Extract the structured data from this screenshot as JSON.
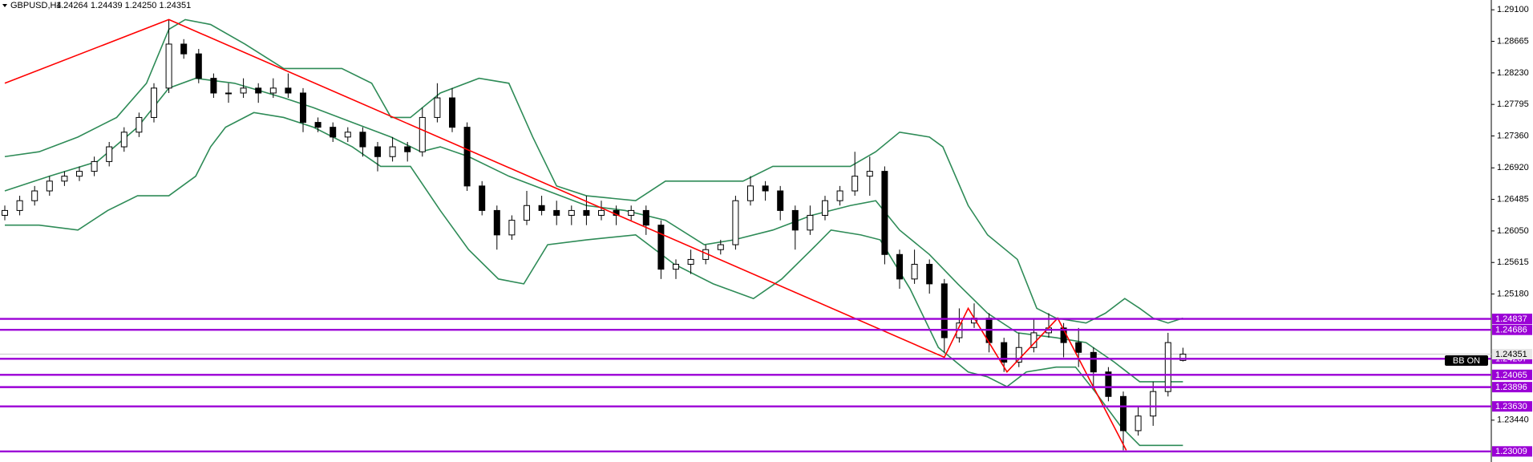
{
  "chart_data": {
    "type": "candlestick",
    "title": "GBPUSD,H4",
    "subtitle": "1.24264 1.24439 1.24250 1.24351",
    "ylim": [
      1.22863,
      1.29235
    ],
    "yticks": [
      {
        "value": 1.291,
        "label": "1.29100"
      },
      1.28665,
      {
        "value": 1.2823,
        "label": "1.28230"
      },
      1.27795,
      {
        "value": 1.2736,
        "label": "1.27360"
      },
      {
        "value": 1.2692,
        "label": "1.26920"
      },
      1.26485,
      {
        "value": 1.2605,
        "label": "1.26050"
      },
      1.25615,
      {
        "value": 1.2518,
        "label": "1.25180"
      },
      {
        "value": 1.2344,
        "label": "1.23440"
      }
    ],
    "ohlc": [
      [
        1.26265,
        1.264,
        1.26197,
        1.26332
      ],
      [
        1.26332,
        1.26535,
        1.26265,
        1.26467
      ],
      [
        1.26467,
        1.2667,
        1.264,
        1.26602
      ],
      [
        1.26602,
        1.26805,
        1.26535,
        1.26737
      ],
      [
        1.26737,
        1.26872,
        1.2667,
        1.26805
      ],
      [
        1.26805,
        1.2694,
        1.26737,
        1.26872
      ],
      [
        1.26872,
        1.27075,
        1.26805,
        1.27007
      ],
      [
        1.27007,
        1.27277,
        1.2694,
        1.2721
      ],
      [
        1.2721,
        1.2748,
        1.27142,
        1.27412
      ],
      [
        1.27412,
        1.27682,
        1.27345,
        1.27615
      ],
      [
        1.27615,
        1.28087,
        1.27547,
        1.2802
      ],
      [
        1.2802,
        1.28965,
        1.27952,
        1.28627
      ],
      [
        1.28627,
        1.28695,
        1.28425,
        1.28492
      ],
      [
        1.28492,
        1.2856,
        1.28087,
        1.28155
      ],
      [
        1.28155,
        1.28222,
        1.27885,
        1.27952
      ],
      [
        1.27952,
        1.28087,
        1.27817,
        1.27952
      ],
      [
        1.27952,
        1.28155,
        1.27885,
        1.2802
      ],
      [
        1.2802,
        1.28087,
        1.27817,
        1.27952
      ],
      [
        1.27952,
        1.28155,
        1.27885,
        1.2802
      ],
      [
        1.2802,
        1.28222,
        1.27885,
        1.27952
      ],
      [
        1.27952,
        1.2802,
        1.27412,
        1.27547
      ],
      [
        1.27547,
        1.27615,
        1.27412,
        1.2748
      ],
      [
        1.2748,
        1.27547,
        1.27277,
        1.27345
      ],
      [
        1.27345,
        1.2748,
        1.27277,
        1.27412
      ],
      [
        1.27412,
        1.2748,
        1.27075,
        1.2721
      ],
      [
        1.2721,
        1.27277,
        1.26872,
        1.27075
      ],
      [
        1.27075,
        1.27345,
        1.27007,
        1.2721
      ],
      [
        1.2721,
        1.27277,
        1.27007,
        1.27142
      ],
      [
        1.27142,
        1.2775,
        1.27075,
        1.27615
      ],
      [
        1.27615,
        1.28087,
        1.27547,
        1.27885
      ],
      [
        1.27885,
        1.2802,
        1.27412,
        1.2748
      ],
      [
        1.2748,
        1.27547,
        1.26602,
        1.2667
      ],
      [
        1.2667,
        1.26737,
        1.26265,
        1.26332
      ],
      [
        1.26332,
        1.264,
        1.25792,
        1.25995
      ],
      [
        1.25995,
        1.26265,
        1.25927,
        1.26197
      ],
      [
        1.26197,
        1.26602,
        1.2613,
        1.264
      ],
      [
        1.264,
        1.26535,
        1.26265,
        1.26332
      ],
      [
        1.26332,
        1.26467,
        1.2613,
        1.26265
      ],
      [
        1.26265,
        1.264,
        1.2613,
        1.26332
      ],
      [
        1.26332,
        1.26535,
        1.2613,
        1.26265
      ],
      [
        1.26265,
        1.26467,
        1.26197,
        1.26332
      ],
      [
        1.26332,
        1.264,
        1.2613,
        1.26265
      ],
      [
        1.26265,
        1.264,
        1.26197,
        1.26332
      ],
      [
        1.26332,
        1.264,
        1.25995,
        1.2613
      ],
      [
        1.2613,
        1.26197,
        1.25387,
        1.25522
      ],
      [
        1.25522,
        1.25657,
        1.25387,
        1.2559
      ],
      [
        1.2559,
        1.25792,
        1.25455,
        1.25657
      ],
      [
        1.25657,
        1.2586,
        1.2559,
        1.25792
      ],
      [
        1.25792,
        1.25927,
        1.25725,
        1.2586
      ],
      [
        1.2586,
        1.26535,
        1.25792,
        1.26467
      ],
      [
        1.26467,
        1.26805,
        1.264,
        1.2667
      ],
      [
        1.2667,
        1.26737,
        1.26467,
        1.26602
      ],
      [
        1.26602,
        1.2667,
        1.26197,
        1.26332
      ],
      [
        1.26332,
        1.264,
        1.25792,
        1.26062
      ],
      [
        1.26062,
        1.264,
        1.25995,
        1.26265
      ],
      [
        1.26265,
        1.26535,
        1.26197,
        1.26467
      ],
      [
        1.26467,
        1.2667,
        1.264,
        1.26602
      ],
      [
        1.26602,
        1.27142,
        1.26535,
        1.26805
      ],
      [
        1.26805,
        1.27075,
        1.26535,
        1.26872
      ],
      [
        1.26872,
        1.2694,
        1.2559,
        1.25725
      ],
      [
        1.25725,
        1.25792,
        1.25252,
        1.25387
      ],
      [
        1.25387,
        1.25792,
        1.2532,
        1.2559
      ],
      [
        1.2559,
        1.25657,
        1.25185,
        1.2532
      ],
      [
        1.2532,
        1.25387,
        1.24375,
        1.24577
      ],
      [
        1.24577,
        1.24982,
        1.2451,
        1.2478
      ],
      [
        1.2478,
        1.2505,
        1.24712,
        1.24847
      ],
      [
        1.24847,
        1.24915,
        1.24375,
        1.2451
      ],
      [
        1.2451,
        1.24577,
        1.24105,
        1.2424
      ],
      [
        1.2424,
        1.24645,
        1.24172,
        1.24442
      ],
      [
        1.24442,
        1.24847,
        1.24375,
        1.24645
      ],
      [
        1.24645,
        1.24915,
        1.24577,
        1.24712
      ],
      [
        1.24712,
        1.2478,
        1.24307,
        1.2451
      ],
      [
        1.2451,
        1.24712,
        1.24172,
        1.24375
      ],
      [
        1.24375,
        1.24442,
        1.23902,
        1.24105
      ],
      [
        1.24105,
        1.24172,
        1.237,
        1.23767
      ],
      [
        1.23767,
        1.23835,
        1.23025,
        1.23295
      ],
      [
        1.23295,
        1.23632,
        1.23227,
        1.23497
      ],
      [
        1.23497,
        1.2397,
        1.23362,
        1.23835
      ],
      [
        1.23835,
        1.24645,
        1.23767,
        1.2451
      ],
      [
        1.24264,
        1.24439,
        1.2425,
        1.24351
      ]
    ],
    "bull_color": "#ffffff",
    "bear_color": "#000000",
    "bands": [
      {
        "color": "#2e8b57",
        "x": [
          0,
          2.3,
          4.9,
          7.5,
          9.5,
          11,
          12.1,
          13.8,
          16.1,
          18.7,
          20.7,
          22.6,
          24.6,
          25.9,
          27.2,
          29.2,
          31.8,
          33.8,
          35.4,
          37,
          39,
          42.3,
          44.3,
          46.9,
          49.5,
          51.5,
          54.1,
          56.7,
          58.4,
          60,
          62,
          62.9,
          64.6,
          65.9,
          67.9,
          69.2,
          70.5,
          72.5,
          73.8,
          75.1,
          76.1,
          77,
          78,
          79
        ],
        "values": [
          1.27075,
          1.27142,
          1.27345,
          1.27615,
          1.28087,
          1.2883,
          1.28965,
          1.28897,
          1.28627,
          1.2829,
          1.2829,
          1.2829,
          1.28087,
          1.27615,
          1.27615,
          1.27952,
          1.28155,
          1.28087,
          1.27345,
          1.2667,
          1.26535,
          1.26467,
          1.26737,
          1.26737,
          1.26737,
          1.2694,
          1.2694,
          1.2694,
          1.27142,
          1.27412,
          1.27345,
          1.2721,
          1.264,
          1.25995,
          1.25657,
          1.24982,
          1.24847,
          1.2478,
          1.24915,
          1.25117,
          1.24982,
          1.24847,
          1.2478,
          1.24847
        ]
      },
      {
        "color": "#2e8b57",
        "x": [
          0,
          3,
          6.2,
          8.9,
          11,
          12.8,
          15.4,
          18.7,
          20.7,
          23.3,
          25.9,
          27.9,
          29.2,
          31.1,
          33.8,
          36.4,
          39,
          41.6,
          44.3,
          46.9,
          48.9,
          51.5,
          54.1,
          56.7,
          58.4,
          60,
          62,
          63.9,
          65.9,
          67.9,
          70.5,
          72.5,
          74.4,
          76.1,
          77.7,
          79
        ],
        "values": [
          1.26602,
          1.26805,
          1.27007,
          1.2748,
          1.2802,
          1.28155,
          1.28087,
          1.27885,
          1.2775,
          1.27547,
          1.27345,
          1.27142,
          1.2721,
          1.27075,
          1.26805,
          1.26602,
          1.264,
          1.26332,
          1.26197,
          1.2586,
          1.25927,
          1.26062,
          1.26265,
          1.264,
          1.26467,
          1.26062,
          1.25725,
          1.2532,
          1.24915,
          1.24645,
          1.24577,
          1.2451,
          1.2424,
          1.2397,
          1.2397,
          1.2397
        ]
      },
      {
        "color": "#2e8b57",
        "x": [
          0,
          2.3,
          4.9,
          6.9,
          8.9,
          11,
          12.8,
          13.8,
          14.8,
          16.7,
          18.7,
          20.7,
          23.3,
          25.2,
          27.2,
          29.2,
          31.1,
          33.1,
          34.8,
          36.4,
          39,
          42.3,
          44.9,
          47.5,
          50.2,
          52.1,
          54.1,
          55.4,
          57.4,
          58.7,
          60.7,
          62.6,
          64.6,
          65.9,
          67.2,
          68.5,
          70.5,
          71.8,
          73.1,
          74.8,
          76.1,
          77.7,
          79
        ],
        "values": [
          1.2613,
          1.2613,
          1.26062,
          1.26332,
          1.26535,
          1.26535,
          1.26805,
          1.2721,
          1.2748,
          1.27682,
          1.27615,
          1.2748,
          1.2721,
          1.2694,
          1.2694,
          1.26332,
          1.25792,
          1.25387,
          1.2532,
          1.2586,
          1.25927,
          1.25995,
          1.2559,
          1.2532,
          1.25117,
          1.25387,
          1.25792,
          1.26062,
          1.25995,
          1.25927,
          1.25252,
          1.24442,
          1.24105,
          1.24037,
          1.23902,
          1.24105,
          1.24172,
          1.24172,
          1.23835,
          1.23362,
          1.23092,
          1.23092,
          1.23092
        ]
      }
    ],
    "zigzag": {
      "color": "#ff0000",
      "x": [
        0,
        11,
        63,
        64.6,
        67.2,
        70.6,
        75.2
      ],
      "values": [
        1.28087,
        1.28965,
        1.24307,
        1.24982,
        1.24105,
        1.24847,
        1.23025
      ]
    },
    "levels": {
      "color": "#9b00d6",
      "values": [
        1.24837,
        1.24686,
        1.24287,
        1.24065,
        1.23896,
        {
          "value": 1.2363,
          "label": "1.23630"
        },
        1.23009
      ]
    },
    "current_price": 1.24351,
    "bb_label": "BB ON"
  }
}
